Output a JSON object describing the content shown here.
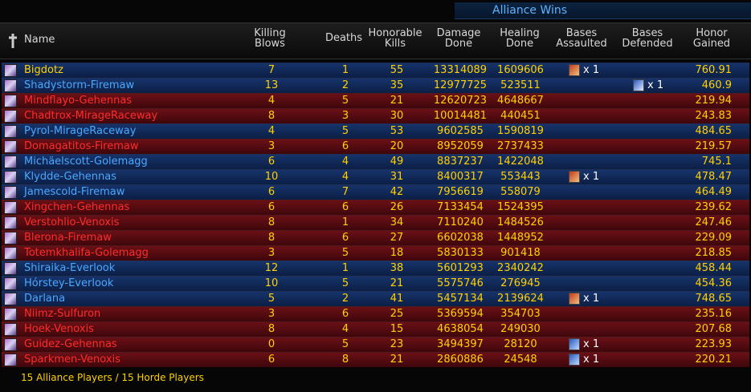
{
  "banner": "Alliance Wins",
  "headers": [
    "Name",
    "Killing Blows",
    "Deaths",
    "Honorable Kills",
    "Damage Done",
    "Healing Done",
    "Bases Assaulted",
    "Bases Defended",
    "Honor Gained"
  ],
  "rows": [
    {
      "name": "Bigdotz",
      "faction": "alliance",
      "name_color": "#ffd200",
      "killing_blows": 7,
      "deaths": 1,
      "honorable_kills": 55,
      "damage": 13314089,
      "healing": 1609606,
      "bases_assaulted": "x 1",
      "bases_defended": null,
      "honor": 760.91
    },
    {
      "name": "Shadystorm-Firemaw",
      "faction": "alliance",
      "name_color": "#4aa8ff",
      "killing_blows": 13,
      "deaths": 2,
      "honorable_kills": 35,
      "damage": 12977725,
      "healing": 523511,
      "bases_assaulted": null,
      "bases_defended": "x 1",
      "honor": 460.9
    },
    {
      "name": "Mindflayo-Gehennas",
      "faction": "horde",
      "name_color": "#ff2b2b",
      "killing_blows": 4,
      "deaths": 5,
      "honorable_kills": 21,
      "damage": 12620723,
      "healing": 4648667,
      "bases_assaulted": null,
      "bases_defended": null,
      "honor": 219.94
    },
    {
      "name": "Chadtrox-MirageRaceway",
      "faction": "horde",
      "name_color": "#ff2b2b",
      "killing_blows": 8,
      "deaths": 3,
      "honorable_kills": 30,
      "damage": 10014481,
      "healing": 440451,
      "bases_assaulted": null,
      "bases_defended": null,
      "honor": 243.83
    },
    {
      "name": "Pyrol-MirageRaceway",
      "faction": "alliance",
      "name_color": "#4aa8ff",
      "killing_blows": 4,
      "deaths": 5,
      "honorable_kills": 53,
      "damage": 9602585,
      "healing": 1590819,
      "bases_assaulted": null,
      "bases_defended": null,
      "honor": 484.65
    },
    {
      "name": "Domagatitos-Firemaw",
      "faction": "horde",
      "name_color": "#ff2b2b",
      "killing_blows": 3,
      "deaths": 6,
      "honorable_kills": 20,
      "damage": 8952059,
      "healing": 2737433,
      "bases_assaulted": null,
      "bases_defended": null,
      "honor": 219.57
    },
    {
      "name": "Michäelscott-Golemagg",
      "faction": "alliance",
      "name_color": "#4aa8ff",
      "killing_blows": 6,
      "deaths": 4,
      "honorable_kills": 49,
      "damage": 8837237,
      "healing": 1422048,
      "bases_assaulted": null,
      "bases_defended": null,
      "honor": 745.1
    },
    {
      "name": "Klydde-Gehennas",
      "faction": "alliance",
      "name_color": "#4aa8ff",
      "killing_blows": 10,
      "deaths": 4,
      "honorable_kills": 31,
      "damage": 8400317,
      "healing": 553443,
      "bases_assaulted": "x 1",
      "bases_defended": null,
      "honor": 478.47
    },
    {
      "name": "Jamescold-Firemaw",
      "faction": "alliance",
      "name_color": "#4aa8ff",
      "killing_blows": 6,
      "deaths": 7,
      "honorable_kills": 42,
      "damage": 7956619,
      "healing": 558079,
      "bases_assaulted": null,
      "bases_defended": null,
      "honor": 464.49
    },
    {
      "name": "Xingchen-Gehennas",
      "faction": "horde",
      "name_color": "#ff2b2b",
      "killing_blows": 6,
      "deaths": 6,
      "honorable_kills": 26,
      "damage": 7133454,
      "healing": 1524395,
      "bases_assaulted": null,
      "bases_defended": null,
      "honor": 239.62
    },
    {
      "name": "Verstohlio-Venoxis",
      "faction": "horde",
      "name_color": "#ff2b2b",
      "killing_blows": 8,
      "deaths": 1,
      "honorable_kills": 34,
      "damage": 7110240,
      "healing": 1484526,
      "bases_assaulted": null,
      "bases_defended": null,
      "honor": 247.46
    },
    {
      "name": "Blerona-Firemaw",
      "faction": "horde",
      "name_color": "#ff2b2b",
      "killing_blows": 8,
      "deaths": 6,
      "honorable_kills": 27,
      "damage": 6602038,
      "healing": 1448952,
      "bases_assaulted": null,
      "bases_defended": null,
      "honor": 229.09
    },
    {
      "name": "Totemkhalifa-Golemagg",
      "faction": "horde",
      "name_color": "#ff2b2b",
      "killing_blows": 3,
      "deaths": 5,
      "honorable_kills": 18,
      "damage": 5830133,
      "healing": 901418,
      "bases_assaulted": null,
      "bases_defended": null,
      "honor": 218.85
    },
    {
      "name": "Shiraika-Everlook",
      "faction": "alliance",
      "name_color": "#4aa8ff",
      "killing_blows": 12,
      "deaths": 1,
      "honorable_kills": 38,
      "damage": 5601293,
      "healing": 2340242,
      "bases_assaulted": null,
      "bases_defended": null,
      "honor": 458.44
    },
    {
      "name": "Hórstey-Everlook",
      "faction": "alliance",
      "name_color": "#4aa8ff",
      "killing_blows": 10,
      "deaths": 5,
      "honorable_kills": 21,
      "damage": 5575746,
      "healing": 276945,
      "bases_assaulted": null,
      "bases_defended": null,
      "honor": 454.36
    },
    {
      "name": "Darlana",
      "faction": "alliance",
      "name_color": "#4aa8ff",
      "killing_blows": 5,
      "deaths": 2,
      "honorable_kills": 41,
      "damage": 5457134,
      "healing": 2139624,
      "bases_assaulted": "x 1",
      "bases_defended": null,
      "honor": 748.65
    },
    {
      "name": "Niimz-Sulfuron",
      "faction": "horde",
      "name_color": "#ff2b2b",
      "killing_blows": 3,
      "deaths": 6,
      "honorable_kills": 25,
      "damage": 5369594,
      "healing": 354703,
      "bases_assaulted": null,
      "bases_defended": null,
      "honor": 235.16
    },
    {
      "name": "Hoek-Venoxis",
      "faction": "horde",
      "name_color": "#ff2b2b",
      "killing_blows": 8,
      "deaths": 4,
      "honorable_kills": 15,
      "damage": 4638054,
      "healing": 249030,
      "bases_assaulted": null,
      "bases_defended": null,
      "honor": 207.68
    },
    {
      "name": "Guidez-Gehennas",
      "faction": "horde",
      "name_color": "#ff2b2b",
      "killing_blows": 0,
      "deaths": 5,
      "honorable_kills": 23,
      "damage": 3494397,
      "healing": 28120,
      "bases_assaulted": "x 1",
      "bases_defended": null,
      "honor": 223.93
    },
    {
      "name": "Sparkmen-Venoxis",
      "faction": "horde",
      "name_color": "#ff2b2b",
      "killing_blows": 6,
      "deaths": 8,
      "honorable_kills": 21,
      "damage": 2860886,
      "healing": 24548,
      "bases_assaulted": "x 1",
      "bases_defended": null,
      "honor": 220.21
    }
  ],
  "footer": "15 Alliance Players / 15 Horde Players"
}
